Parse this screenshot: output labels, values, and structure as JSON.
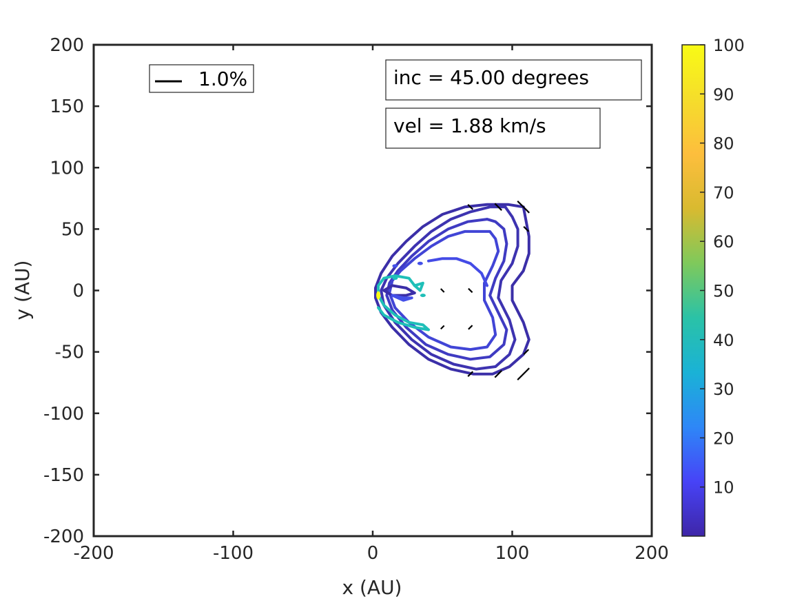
{
  "chart_data": {
    "type": "contour",
    "xlabel": "x (AU)",
    "ylabel": "y (AU)",
    "xlim": [
      -200,
      200
    ],
    "ylim": [
      -200,
      200
    ],
    "xticks": [
      "-200",
      "-100",
      "0",
      "100",
      "200"
    ],
    "yticks": [
      "200",
      "150",
      "100",
      "50",
      "0",
      "-50",
      "-100",
      "-150",
      "-200"
    ],
    "legend": {
      "text": "1.0%",
      "position": "top-left"
    },
    "annotations": {
      "inc": "inc = 45.00 degrees",
      "vel": "vel =  1.88 km/s"
    },
    "colorbar": {
      "range": [
        0,
        100
      ],
      "ticks": [
        "100",
        "90",
        "80",
        "70",
        "60",
        "50",
        "40",
        "30",
        "20",
        "10"
      ],
      "colormap": [
        "#3e26a8",
        "#4743f7",
        "#2e87f7",
        "#1ab2d6",
        "#2ac2a7",
        "#7fc95b",
        "#d9ba30",
        "#fdbe3d",
        "#f5dd2b",
        "#f9fb15"
      ]
    },
    "contours": [
      {
        "level": 5,
        "color": "#3b2fa8",
        "points": [
          [
            108,
            68
          ],
          [
            97,
            70
          ],
          [
            82,
            70
          ],
          [
            66,
            68
          ],
          [
            50,
            62
          ],
          [
            36,
            52
          ],
          [
            24,
            40
          ],
          [
            14,
            28
          ],
          [
            6,
            14
          ],
          [
            2,
            2
          ],
          [
            2,
            -6
          ],
          [
            6,
            -18
          ],
          [
            14,
            -30
          ],
          [
            26,
            -44
          ],
          [
            40,
            -56
          ],
          [
            56,
            -64
          ],
          [
            72,
            -68
          ],
          [
            86,
            -68
          ],
          [
            98,
            -62
          ],
          [
            108,
            -52
          ],
          [
            112,
            -40
          ],
          [
            108,
            -26
          ],
          [
            100,
            -8
          ],
          [
            100,
            4
          ],
          [
            108,
            16
          ],
          [
            112,
            30
          ],
          [
            112,
            44
          ],
          [
            110,
            56
          ],
          [
            108,
            68
          ]
        ]
      },
      {
        "level": 8,
        "color": "#3d33b0",
        "points": [
          [
            95,
            68
          ],
          [
            84,
            68
          ],
          [
            70,
            64
          ],
          [
            56,
            58
          ],
          [
            42,
            48
          ],
          [
            30,
            36
          ],
          [
            18,
            22
          ],
          [
            10,
            10
          ],
          [
            6,
            0
          ],
          [
            8,
            -12
          ],
          [
            16,
            -26
          ],
          [
            28,
            -40
          ],
          [
            42,
            -52
          ],
          [
            58,
            -60
          ],
          [
            74,
            -64
          ],
          [
            88,
            -62
          ],
          [
            98,
            -52
          ],
          [
            102,
            -40
          ],
          [
            98,
            -24
          ],
          [
            90,
            -6
          ],
          [
            92,
            8
          ],
          [
            100,
            22
          ],
          [
            104,
            36
          ],
          [
            104,
            50
          ],
          [
            100,
            60
          ],
          [
            95,
            68
          ]
        ]
      },
      {
        "level": 12,
        "color": "#3f3bc2",
        "points": [
          [
            82,
            58
          ],
          [
            68,
            56
          ],
          [
            54,
            50
          ],
          [
            40,
            40
          ],
          [
            28,
            28
          ],
          [
            18,
            16
          ],
          [
            12,
            6
          ],
          [
            10,
            -4
          ],
          [
            14,
            -16
          ],
          [
            24,
            -30
          ],
          [
            38,
            -44
          ],
          [
            54,
            -52
          ],
          [
            70,
            -56
          ],
          [
            84,
            -54
          ],
          [
            94,
            -44
          ],
          [
            96,
            -32
          ],
          [
            90,
            -18
          ],
          [
            84,
            -4
          ],
          [
            88,
            10
          ],
          [
            94,
            24
          ],
          [
            96,
            38
          ],
          [
            94,
            50
          ],
          [
            88,
            56
          ],
          [
            82,
            58
          ]
        ]
      },
      {
        "level": 16,
        "color": "#4145d6",
        "points": [
          [
            78,
            48
          ],
          [
            66,
            48
          ],
          [
            54,
            44
          ],
          [
            42,
            36
          ],
          [
            30,
            26
          ],
          [
            20,
            16
          ],
          [
            14,
            8
          ],
          [
            12,
            -2
          ],
          [
            16,
            -14
          ],
          [
            26,
            -26
          ],
          [
            40,
            -38
          ],
          [
            56,
            -46
          ],
          [
            70,
            -48
          ],
          [
            82,
            -46
          ],
          [
            88,
            -36
          ],
          [
            86,
            -22
          ],
          [
            80,
            -8
          ],
          [
            80,
            6
          ],
          [
            86,
            20
          ],
          [
            90,
            32
          ],
          [
            88,
            42
          ],
          [
            84,
            48
          ],
          [
            78,
            48
          ]
        ]
      },
      {
        "level": 20,
        "color": "#444be6",
        "points": [
          [
            40,
            24
          ],
          [
            50,
            26
          ],
          [
            60,
            26
          ],
          [
            70,
            22
          ],
          [
            78,
            14
          ],
          [
            82,
            4
          ]
        ]
      },
      {
        "level": 50,
        "color": "#1fbfb8",
        "points": [
          [
            30,
            4
          ],
          [
            26,
            10
          ],
          [
            16,
            12
          ],
          [
            8,
            10
          ],
          [
            4,
            4
          ],
          [
            4,
            -4
          ],
          [
            8,
            -12
          ],
          [
            16,
            -20
          ],
          [
            26,
            -26
          ],
          [
            36,
            -28
          ],
          [
            40,
            -32
          ],
          [
            30,
            -30
          ],
          [
            18,
            -26
          ],
          [
            8,
            -20
          ],
          [
            4,
            -14
          ]
        ]
      },
      {
        "level": 50,
        "color": "#1fbfb8",
        "points": [
          [
            30,
            4
          ],
          [
            36,
            6
          ],
          [
            34,
            0
          ],
          [
            30,
            4
          ]
        ]
      },
      {
        "level": 6,
        "color": "#3b2fa8",
        "points": [
          [
            8,
            0
          ],
          [
            14,
            4
          ],
          [
            24,
            2
          ],
          [
            30,
            -2
          ],
          [
            24,
            -4
          ],
          [
            14,
            -4
          ],
          [
            8,
            0
          ]
        ]
      },
      {
        "level": 10,
        "color": "#4450e8",
        "points": [
          [
            14,
            -4
          ],
          [
            22,
            -6
          ],
          [
            28,
            -6
          ],
          [
            22,
            -8
          ],
          [
            14,
            -4
          ]
        ]
      }
    ]
  }
}
